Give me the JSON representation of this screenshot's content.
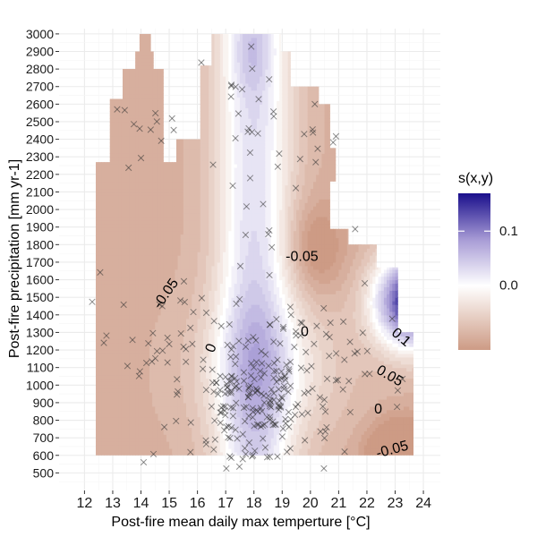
{
  "chart_data": {
    "type": "heatmap",
    "title": "",
    "xlabel": "Post-fire mean daily max temperture [°C]",
    "ylabel": "Post-fire precipitation [mm yr-1]",
    "xlim": [
      11.1,
      24.6
    ],
    "ylim": [
      400,
      3030
    ],
    "x_ticks": [
      "12",
      "13",
      "14",
      "15",
      "16",
      "17",
      "18",
      "19",
      "20",
      "21",
      "22",
      "23",
      "24"
    ],
    "y_ticks": [
      "500",
      "600",
      "700",
      "800",
      "900",
      "1000",
      "1100",
      "1200",
      "1300",
      "1400",
      "1500",
      "1600",
      "1700",
      "1800",
      "1900",
      "2000",
      "2100",
      "2200",
      "2300",
      "2400",
      "2500",
      "2600",
      "2700",
      "2800",
      "2900",
      "3000"
    ],
    "grid": true,
    "legend": {
      "title": "s(x,y)",
      "position": "right",
      "ticks": [
        "0.0",
        "0.1"
      ],
      "tick_values": [
        0.0,
        0.1
      ],
      "range": [
        -0.12,
        0.17
      ],
      "colors": {
        "low": "#cd9b85",
        "mid": "#ffffff",
        "high": "#1a0f8c"
      }
    },
    "contour_labels": [
      {
        "text": "-0.05",
        "x": 19.7,
        "y": 1730,
        "rotation": 0
      },
      {
        "text": "-0.05",
        "x": 14.9,
        "y": 1520,
        "rotation": -55
      },
      {
        "text": "0",
        "x": 16.5,
        "y": 1210,
        "rotation": -70
      },
      {
        "text": "0",
        "x": 19.8,
        "y": 1300,
        "rotation": 0
      },
      {
        "text": "0.1",
        "x": 23.2,
        "y": 1270,
        "rotation": 40
      },
      {
        "text": "0.05",
        "x": 22.8,
        "y": 1050,
        "rotation": 30
      },
      {
        "text": "0",
        "x": 22.4,
        "y": 860,
        "rotation": 0
      },
      {
        "text": "-0.05",
        "x": 22.9,
        "y": 630,
        "rotation": -15
      }
    ],
    "points_seed": 7
  },
  "colors": {
    "panel_bg": "#ffffff",
    "grid_major": "#ebebeb",
    "grid_minor": "#f5f5f5",
    "point": "#333333"
  }
}
